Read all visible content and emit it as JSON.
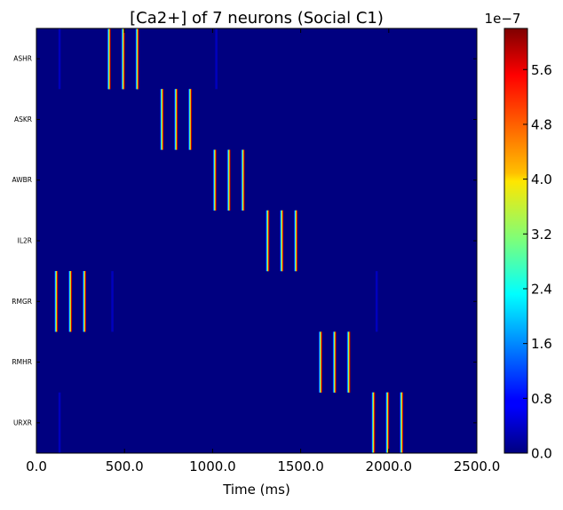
{
  "chart_data": {
    "type": "heatmap",
    "title": "[Ca2+] of 7 neurons (Social C1)",
    "xlabel": "Time (ms)",
    "xlim": [
      0,
      2500
    ],
    "x_ticks": [
      "0.0",
      "500.0",
      "1000.0",
      "1500.0",
      "2000.0",
      "2500.0"
    ],
    "x_tick_values": [
      0,
      500,
      1000,
      1500,
      2000,
      2500
    ],
    "rows": [
      "ASHR",
      "ASKR",
      "AWBR",
      "IL2R",
      "RMGR",
      "RMHR",
      "URXR"
    ],
    "colorbar": {
      "exponent_label": "1e−7",
      "ticks": [
        "0.0",
        "0.8",
        "1.6",
        "2.4",
        "3.2",
        "4.0",
        "4.8",
        "5.6"
      ],
      "tick_values": [
        0.0,
        0.8,
        1.6,
        2.4,
        3.2,
        4.0,
        4.8,
        5.6
      ],
      "max": 6.2,
      "colormap": "jet"
    },
    "peak_value": 6.2,
    "pulse_width_ms": 18,
    "spikes": [
      {
        "row": "ASHR",
        "times_ms": [
          420,
          500,
          580
        ]
      },
      {
        "row": "ASKR",
        "times_ms": [
          720,
          800,
          880
        ]
      },
      {
        "row": "AWBR",
        "times_ms": [
          1020,
          1100,
          1180
        ]
      },
      {
        "row": "IL2R",
        "times_ms": [
          1320,
          1400,
          1480
        ]
      },
      {
        "row": "RMGR",
        "times_ms": [
          120,
          200,
          280
        ]
      },
      {
        "row": "RMHR",
        "times_ms": [
          1620,
          1700,
          1780
        ]
      },
      {
        "row": "URXR",
        "times_ms": [
          1920,
          2000,
          2080
        ]
      }
    ],
    "faint_marks": [
      {
        "row": "ASHR",
        "time_ms": 130
      },
      {
        "row": "ASHR",
        "time_ms": 1020
      },
      {
        "row": "RMGR",
        "time_ms": 430
      },
      {
        "row": "RMGR",
        "time_ms": 1930
      },
      {
        "row": "URXR",
        "time_ms": 130
      }
    ]
  }
}
